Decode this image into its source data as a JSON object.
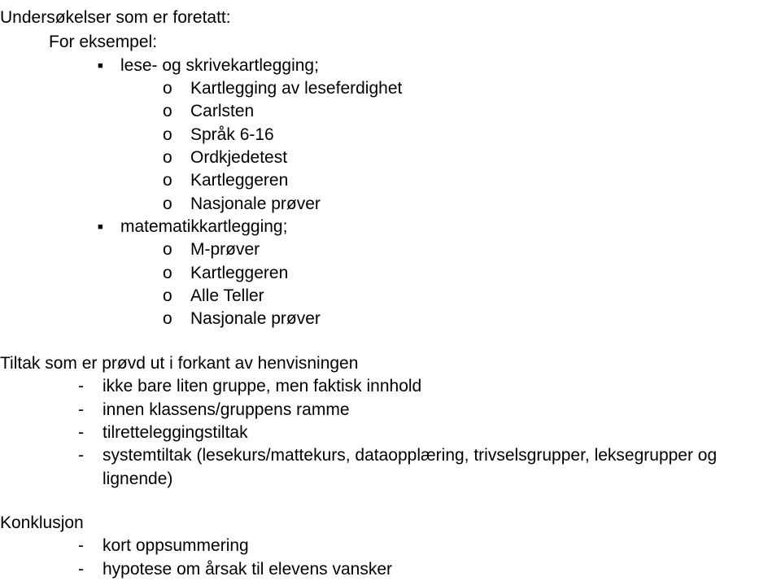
{
  "title": "Undersøkelser som er foretatt:",
  "subtitle": "For eksempel:",
  "bullets_level1": [
    {
      "label": "lese- og skrivekartlegging;",
      "marker": "■",
      "sub": [
        {
          "marker": "o",
          "label": "Kartlegging av leseferdighet"
        },
        {
          "marker": "o",
          "label": "Carlsten"
        },
        {
          "marker": "o",
          "label": "Språk 6-16"
        },
        {
          "marker": "o",
          "label": "Ordkjedetest"
        },
        {
          "marker": "o",
          "label": "Kartleggeren"
        },
        {
          "marker": "o",
          "label": "Nasjonale prøver"
        }
      ]
    },
    {
      "label": "matematikkartlegging;",
      "marker": "■",
      "sub": [
        {
          "marker": "o",
          "label": "M-prøver"
        },
        {
          "marker": "o",
          "label": "Kartleggeren"
        },
        {
          "marker": "o",
          "label": "Alle Teller"
        },
        {
          "marker": "o",
          "label": "Nasjonale prøver"
        }
      ]
    }
  ],
  "section2_title": "Tiltak som er prøvd ut i forkant av henvisningen",
  "section2_items": [
    {
      "marker": "-",
      "label": "ikke bare liten gruppe, men faktisk innhold"
    },
    {
      "marker": "-",
      "label": "innen klassens/gruppens ramme"
    },
    {
      "marker": "-",
      "label": "tilretteleggingstiltak"
    },
    {
      "marker": "-",
      "label": "systemtiltak (lesekurs/mattekurs, dataopplæring, trivselsgrupper, leksegrupper og lignende)"
    }
  ],
  "section3_title": "Konklusjon",
  "section3_items": [
    {
      "marker": "-",
      "label": "kort oppsummering"
    },
    {
      "marker": "-",
      "label": "hypotese om årsak til elevens vansker"
    }
  ]
}
